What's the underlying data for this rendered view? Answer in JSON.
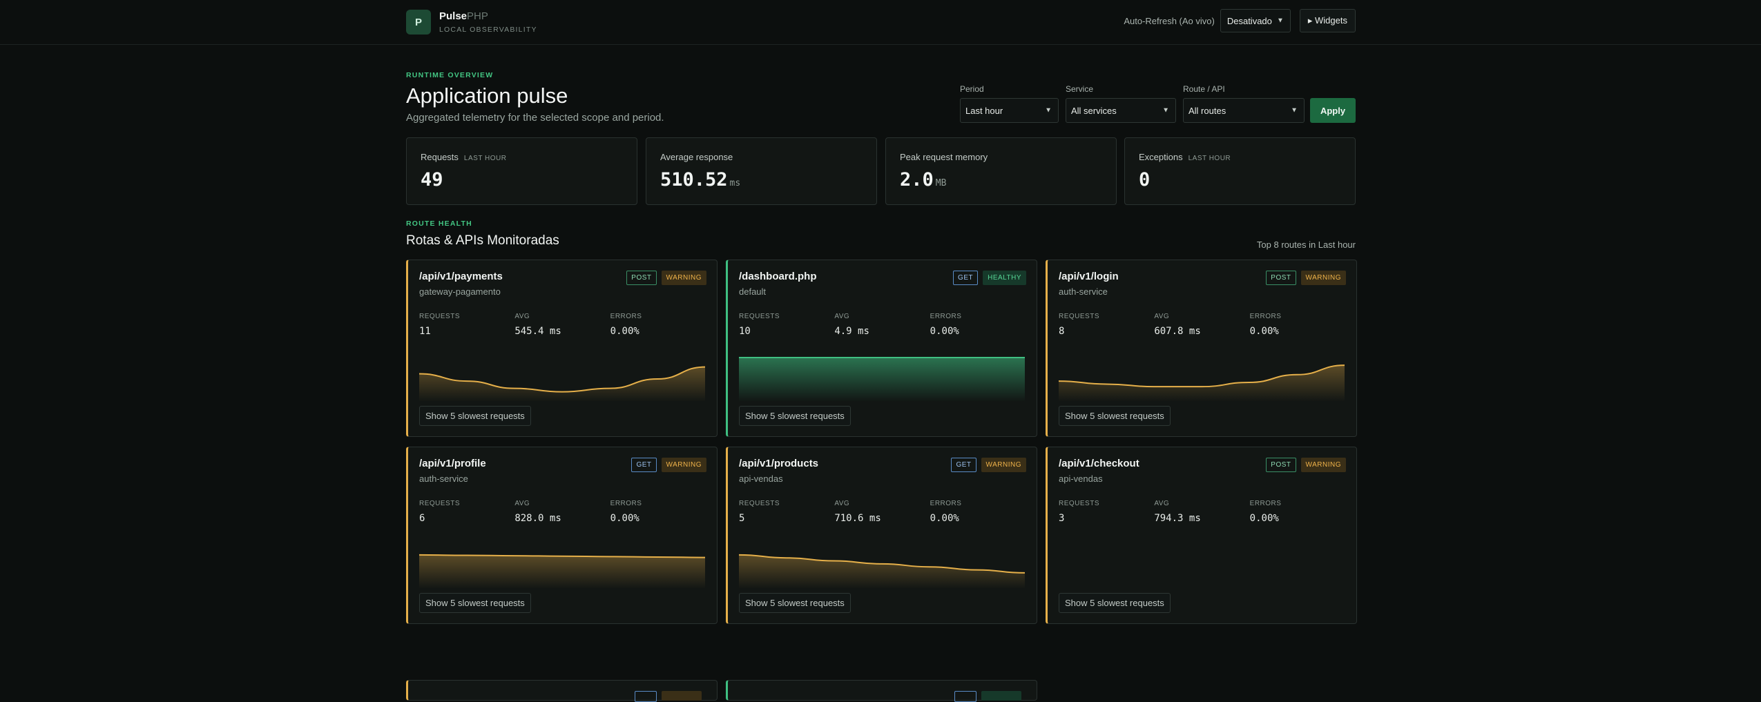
{
  "brand": {
    "logo_letter": "P",
    "name": "Pulse",
    "name_suffix": "PHP",
    "subtitle": "LOCAL OBSERVABILITY"
  },
  "topbar": {
    "auto_refresh_label": "Auto-Refresh (Ao vivo)",
    "auto_refresh_value": "Desativado",
    "widgets_button": "▸ Widgets"
  },
  "header": {
    "eyebrow": "RUNTIME OVERVIEW",
    "title": "Application pulse",
    "subtitle": "Aggregated telemetry for the selected scope and period."
  },
  "filters": {
    "period": {
      "label": "Period",
      "value": "Last hour"
    },
    "service": {
      "label": "Service",
      "value": "All services"
    },
    "route": {
      "label": "Route / API",
      "value": "All routes"
    },
    "apply": "Apply"
  },
  "stats": [
    {
      "label": "Requests",
      "tag": "LAST HOUR",
      "value": "49",
      "unit": ""
    },
    {
      "label": "Average response",
      "tag": "",
      "value": "510.52",
      "unit": "ms"
    },
    {
      "label": "Peak request memory",
      "tag": "",
      "value": "2.0",
      "unit": "MB"
    },
    {
      "label": "Exceptions",
      "tag": "LAST HOUR",
      "value": "0",
      "unit": ""
    }
  ],
  "routes_section": {
    "eyebrow": "ROUTE HEALTH",
    "title": "Rotas & APIs Monitoradas",
    "meta": "Top 8 routes in Last hour"
  },
  "metric_labels": {
    "requests": "REQUESTS",
    "avg": "AVG",
    "errors": "ERRORS"
  },
  "slowest_button": "Show 5 slowest requests",
  "cards": [
    {
      "route": "/api/v1/payments",
      "service": "gateway-pagamento",
      "method": "POST",
      "status": "WARNING",
      "requests": "11",
      "avg": "545.4 ms",
      "errors": "0.00%",
      "trend": [
        0.62,
        0.45,
        0.28,
        0.2,
        0.28,
        0.5,
        0.78
      ]
    },
    {
      "route": "/dashboard.php",
      "service": "default",
      "method": "GET",
      "status": "HEALTHY",
      "requests": "10",
      "avg": "4.9 ms",
      "errors": "0.00%",
      "trend": [
        1,
        1,
        1,
        1,
        1,
        1,
        1
      ]
    },
    {
      "route": "/api/v1/login",
      "service": "auth-service",
      "method": "POST",
      "status": "WARNING",
      "requests": "8",
      "avg": "607.8 ms",
      "errors": "0.00%",
      "trend": [
        0.45,
        0.38,
        0.32,
        0.32,
        0.42,
        0.6,
        0.82
      ]
    },
    {
      "route": "/api/v1/profile",
      "service": "auth-service",
      "method": "GET",
      "status": "WARNING",
      "requests": "6",
      "avg": "828.0 ms",
      "errors": "0.00%",
      "trend": [
        0.76,
        0.75,
        0.74,
        0.73,
        0.72,
        0.71,
        0.7
      ]
    },
    {
      "route": "/api/v1/products",
      "service": "api-vendas",
      "method": "GET",
      "status": "WARNING",
      "requests": "5",
      "avg": "710.6 ms",
      "errors": "0.00%",
      "trend": [
        0.76,
        0.69,
        0.62,
        0.55,
        0.48,
        0.41,
        0.34
      ]
    },
    {
      "route": "/api/v1/checkout",
      "service": "api-vendas",
      "method": "POST",
      "status": "WARNING",
      "requests": "3",
      "avg": "794.3 ms",
      "errors": "0.00%",
      "trend": []
    }
  ],
  "colors": {
    "accent": "#43c683",
    "warning": "#e6b04a",
    "healthy": "#3fc082",
    "apply": "#1c6a40"
  }
}
